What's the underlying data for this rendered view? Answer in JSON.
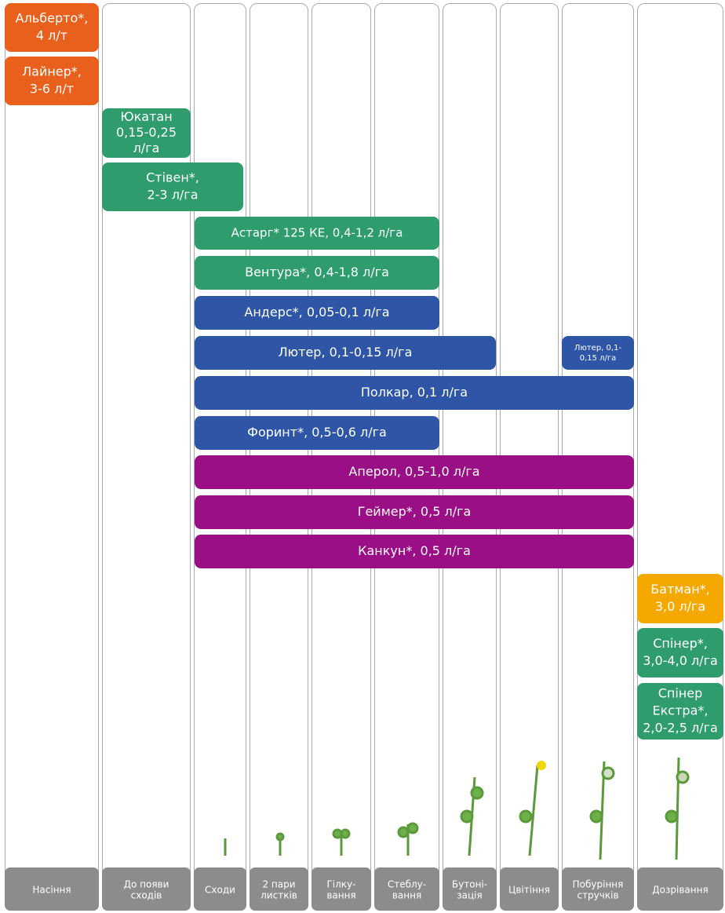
{
  "stages": [
    {
      "lines": [
        "Насіння"
      ]
    },
    {
      "lines": [
        "До появи",
        "сходів"
      ]
    },
    {
      "lines": [
        "Сходи"
      ]
    },
    {
      "lines": [
        "2 пари",
        "листків"
      ]
    },
    {
      "lines": [
        "Гілку-",
        "вання"
      ]
    },
    {
      "lines": [
        "Стеблу-",
        "вання"
      ]
    },
    {
      "lines": [
        "Бутоні-",
        "зація"
      ]
    },
    {
      "lines": [
        "Цвітіння"
      ]
    },
    {
      "lines": [
        "Побуріння",
        "стручків"
      ]
    },
    {
      "lines": [
        "Дозрівання"
      ]
    }
  ],
  "treatments": [
    {
      "lines": [
        "Альберто*,",
        "4 л/т"
      ],
      "color": "#e8601c"
    },
    {
      "lines": [
        "Лайнер*,",
        "3-6 л/т"
      ],
      "color": "#e8601c"
    },
    {
      "lines": [
        "Юкатан",
        "0,15-0,25",
        "л/га"
      ],
      "color": "#2e9c6c"
    },
    {
      "lines": [
        "Стівен*,",
        "2-3 л/га"
      ],
      "color": "#2e9c6c"
    },
    {
      "lines": [
        "Астарг* 125 КЕ, 0,4-1,2 л/га"
      ],
      "color": "#2e9c6c"
    },
    {
      "lines": [
        "Вентура*, 0,4-1,8 л/га"
      ],
      "color": "#2e9c6c"
    },
    {
      "lines": [
        "Андерс*, 0,05-0,1  л/га"
      ],
      "color": "#2f56a6"
    },
    {
      "lines": [
        "Лютер, 0,1-0,15  л/га"
      ],
      "color": "#2f56a6"
    },
    {
      "lines": [
        "Лютер, 0,1-",
        "0,15  л/га"
      ],
      "color": "#2f56a6"
    },
    {
      "lines": [
        "Полкар, 0,1 л/га"
      ],
      "color": "#2f56a6"
    },
    {
      "lines": [
        "Форинт*, 0,5-0,6  л/га"
      ],
      "color": "#2f56a6"
    },
    {
      "lines": [
        "Аперол, 0,5-1,0 л/га"
      ],
      "color": "#9b0f86"
    },
    {
      "lines": [
        "Геймер*, 0,5 л/га"
      ],
      "color": "#9b0f86"
    },
    {
      "lines": [
        "Канкун*, 0,5 л/га"
      ],
      "color": "#9b0f86"
    },
    {
      "lines": [
        "Батман*,",
        "3,0 л/га"
      ],
      "color": "#f5a800"
    },
    {
      "lines": [
        "Спінер*,",
        "3,0-4,0 л/га"
      ],
      "color": "#2e9c6c"
    },
    {
      "lines": [
        "Спінер",
        "Екстра*,",
        "2,0-2,5 л/га"
      ],
      "color": "#2e9c6c"
    }
  ]
}
